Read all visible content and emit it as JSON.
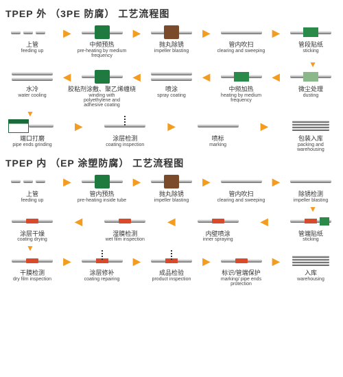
{
  "colors": {
    "arrow_right": "#f39c1f",
    "arrow_left": "#f39c1f",
    "arrow_down": "#f39c1f",
    "machine_green": "#1e7a3e",
    "machine_brown": "#7a4a2a",
    "box_green": "#2a8a4a",
    "box_light": "#8ab88a",
    "coat_red": "#d94a2a",
    "text": "#333333"
  },
  "chart1": {
    "title": "TPEP 外 （3PE 防腐） 工艺流程图",
    "title_fontsize": 14,
    "rows": [
      [
        {
          "zh": "上管",
          "en": "feeding up",
          "icon": "pipe-seg"
        },
        {
          "zh": "中频预热",
          "en": "pre-heating by medium frequency",
          "icon": "machine-green"
        },
        {
          "zh": "抛丸除锈",
          "en": "impeller blasting",
          "icon": "machine-brown"
        },
        {
          "zh": "管内吹扫",
          "en": "clearing and sweeping",
          "icon": "pipe"
        },
        {
          "zh": "管段贴纸",
          "en": "sticking",
          "icon": "box-green"
        }
      ],
      [
        {
          "zh": "水冷",
          "en": "water cooling",
          "icon": "pipe-pair"
        },
        {
          "zh": "胶粘剂涂敷、聚乙烯缠绕",
          "en": "winding with polyethylene and adhesive coating",
          "icon": "machine-green"
        },
        {
          "zh": "喷涂",
          "en": "spray coating",
          "icon": "pipe-pair"
        },
        {
          "zh": "中频加热",
          "en": "heating by medium frequency",
          "icon": "box-green"
        },
        {
          "zh": "微尘处理",
          "en": "dusting",
          "icon": "box-light"
        }
      ],
      [
        {
          "zh": "端口打磨",
          "en": "pipe ends grinding",
          "icon": "grinder"
        },
        {
          "zh": "涂层检测",
          "en": "coating inspection",
          "icon": "spring"
        },
        {
          "zh": "喷标",
          "en": "marking",
          "icon": "pipe"
        },
        {
          "zh": "包装入库",
          "en": "packing and warehousing",
          "icon": "stack"
        }
      ]
    ],
    "direction": [
      "right",
      "left",
      "right"
    ]
  },
  "chart2": {
    "title": "TPEP 内 （EP 涂塑防腐） 工艺流程图",
    "title_fontsize": 14,
    "rows": [
      [
        {
          "zh": "上管",
          "en": "feeding up",
          "icon": "pipe-seg"
        },
        {
          "zh": "管内预热",
          "en": "pre-heating inside tube",
          "icon": "machine-green"
        },
        {
          "zh": "抛丸除锈",
          "en": "impeller blasting",
          "icon": "machine-brown"
        },
        {
          "zh": "管内吹扫",
          "en": "clearing and sweeping",
          "icon": "pipe"
        },
        {
          "zh": "除锈检测",
          "en": "impeller blasting",
          "icon": "pipe"
        }
      ],
      [
        {
          "zh": "涂层干燥",
          "en": "coating drying",
          "icon": "coat"
        },
        {
          "zh": "湿膜检测",
          "en": "wet film inspection",
          "icon": "coat"
        },
        {
          "zh": "内壁喷涂",
          "en": "inner spraying",
          "icon": "coat"
        },
        {
          "zh": "管端贴纸",
          "en": "sticking",
          "icon": "coat-box"
        }
      ],
      [
        {
          "zh": "干膜检测",
          "en": "dry film inspection",
          "icon": "coat"
        },
        {
          "zh": "涂层修补",
          "en": "coating repairing",
          "icon": "spring-coat"
        },
        {
          "zh": "成品检验",
          "en": "product inspection",
          "icon": "spring-coat"
        },
        {
          "zh": "标识/管端保护",
          "en": "marking/ pipe ends protection",
          "icon": "coat"
        },
        {
          "zh": "入库",
          "en": "warehousing",
          "icon": "stack"
        }
      ]
    ],
    "direction": [
      "right",
      "left",
      "right"
    ]
  }
}
